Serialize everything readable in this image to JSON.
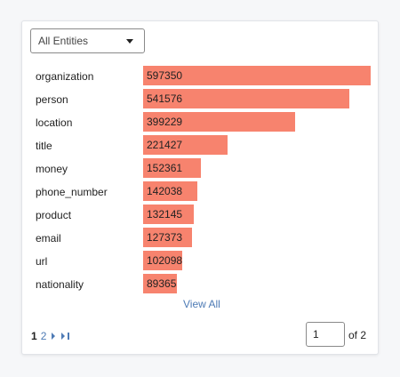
{
  "filter": {
    "selected": "All Entities"
  },
  "chart_data": {
    "type": "bar",
    "orientation": "horizontal",
    "categories": [
      "organization",
      "person",
      "location",
      "title",
      "money",
      "phone_number",
      "product",
      "email",
      "url",
      "nationality"
    ],
    "values": [
      597350,
      541576,
      399229,
      221427,
      152361,
      142038,
      132145,
      127373,
      102098,
      89365
    ],
    "xlim": [
      0,
      597350
    ],
    "bar_color": "#f7836e"
  },
  "view_all_label": "View All",
  "pagination": {
    "current_page": "1",
    "next_page": "2",
    "page_input_value": "1",
    "of_total": "of 2"
  },
  "icons": {
    "next": "chevron-right-icon",
    "last": "last-page-icon"
  }
}
